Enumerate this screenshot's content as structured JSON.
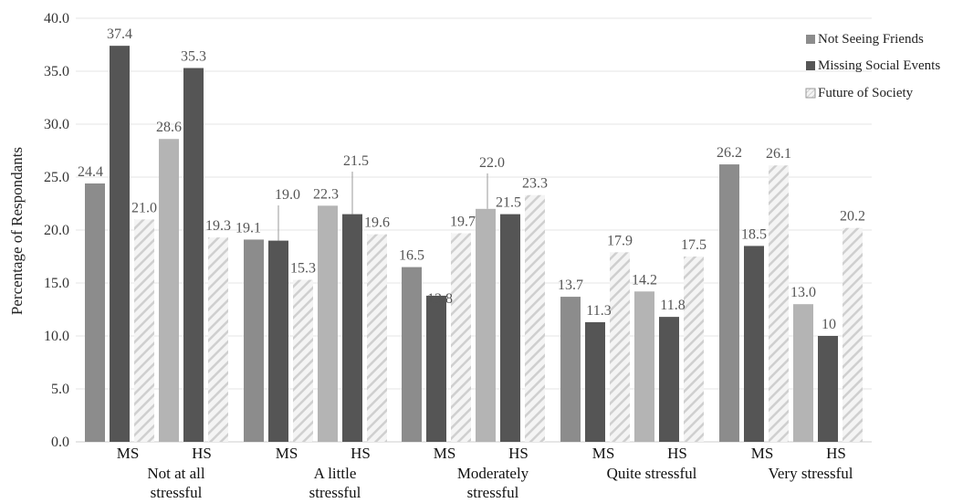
{
  "chart_data": {
    "type": "bar",
    "ylabel": "Percentage of Respondants",
    "xlabel": "",
    "title": "",
    "ylim": [
      0,
      40
    ],
    "yticks": [
      "0.0",
      "5.0",
      "10.0",
      "15.0",
      "20.0",
      "25.0",
      "30.0",
      "35.0",
      "40.0"
    ],
    "grid": true,
    "legend_position": "top-right",
    "series": [
      {
        "name": "Not Seeing Friends",
        "color": "#8c8c8c",
        "color_hs": "#b4b4b4",
        "pattern": "solid"
      },
      {
        "name": "Missing Social Events",
        "color": "#555555",
        "pattern": "solid"
      },
      {
        "name": "Future of Society",
        "color": "#d6d6d6",
        "pattern": "diagonal-hatch"
      }
    ],
    "groups": [
      {
        "label_lines": [
          "Not at all",
          "stressful"
        ],
        "schools": [
          {
            "name": "MS",
            "values": [
              24.4,
              37.4,
              21.0
            ],
            "labels": [
              "24.4",
              "37.4",
              "21.0"
            ]
          },
          {
            "name": "HS",
            "values": [
              28.6,
              35.3,
              19.3
            ],
            "labels": [
              "28.6",
              "35.3",
              "19.3"
            ]
          }
        ]
      },
      {
        "label_lines": [
          "A little",
          "stressful"
        ],
        "schools": [
          {
            "name": "MS",
            "values": [
              19.1,
              19.0,
              15.3
            ],
            "labels": [
              "19.1",
              "19.0",
              "15.3"
            ]
          },
          {
            "name": "HS",
            "values": [
              22.3,
              21.5,
              19.6
            ],
            "labels": [
              "22.3",
              "21.5",
              "19.6"
            ]
          }
        ]
      },
      {
        "label_lines": [
          "Moderately",
          "stressful"
        ],
        "schools": [
          {
            "name": "MS",
            "values": [
              16.5,
              13.8,
              19.7
            ],
            "labels": [
              "16.5",
              "13.8",
              "19.7"
            ]
          },
          {
            "name": "HS",
            "values": [
              22.0,
              21.5,
              23.3
            ],
            "labels": [
              "22.0",
              "21.5",
              "23.3"
            ]
          }
        ]
      },
      {
        "label_lines": [
          "Quite stressful"
        ],
        "schools": [
          {
            "name": "MS",
            "values": [
              13.7,
              11.3,
              17.9
            ],
            "labels": [
              "13.7",
              "11.3",
              "17.9"
            ]
          },
          {
            "name": "HS",
            "values": [
              14.2,
              11.8,
              17.5
            ],
            "labels": [
              "14.2",
              "11.8",
              "17.5"
            ]
          }
        ]
      },
      {
        "label_lines": [
          "Very stressful"
        ],
        "schools": [
          {
            "name": "MS",
            "values": [
              26.2,
              18.5,
              26.1
            ],
            "labels": [
              "26.2",
              "18.5",
              "26.1"
            ]
          },
          {
            "name": "HS",
            "values": [
              13.0,
              10.0,
              20.2
            ],
            "labels": [
              "13.0",
              "10",
              "20.2"
            ]
          }
        ]
      }
    ]
  }
}
